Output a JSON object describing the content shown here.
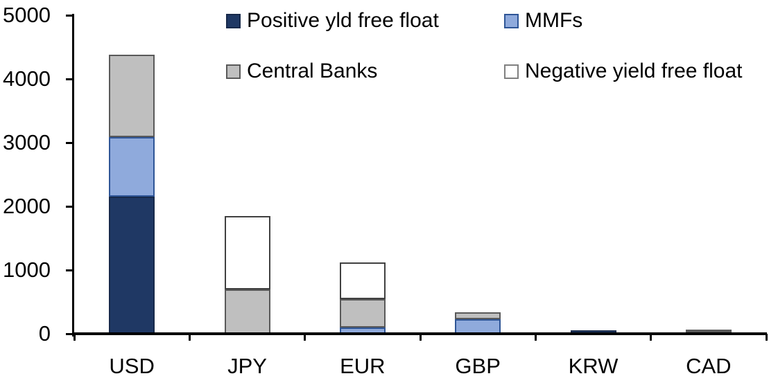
{
  "chart_data": {
    "type": "bar",
    "stacked": true,
    "title": "",
    "xlabel": "",
    "ylabel": "",
    "categories": [
      "USD",
      "JPY",
      "EUR",
      "GBP",
      "KRW",
      "CAD"
    ],
    "series": [
      {
        "name": "Positive yld free float",
        "color": "#1F3864",
        "border_color": "#17294A",
        "values": [
          2150,
          0,
          0,
          0,
          50,
          35
        ]
      },
      {
        "name": "MMFs",
        "color": "#8FAADC",
        "border_color": "#2E5596",
        "values": [
          940,
          0,
          100,
          225,
          0,
          0
        ]
      },
      {
        "name": "Central Banks",
        "color": "#BFBFBF",
        "border_color": "#595959",
        "values": [
          1290,
          700,
          440,
          110,
          0,
          25
        ]
      },
      {
        "name": "Negative yield free float",
        "color": "#FFFFFF",
        "border_color": "#404040",
        "values": [
          0,
          1150,
          575,
          0,
          0,
          0
        ]
      }
    ],
    "stack_totals": [
      4380,
      1850,
      1115,
      335,
      50,
      60
    ],
    "ylim": [
      0,
      5000
    ],
    "yticks": [
      "0",
      "1000",
      "2000",
      "3000",
      "4000",
      "5000"
    ],
    "grid": false,
    "legend_position": "top",
    "legend_rows": [
      [
        "Positive yld free float",
        "MMFs"
      ],
      [
        "Central Banks",
        "Negative yield free float"
      ]
    ],
    "axis_color": "#000000",
    "text_color": "#000000"
  }
}
